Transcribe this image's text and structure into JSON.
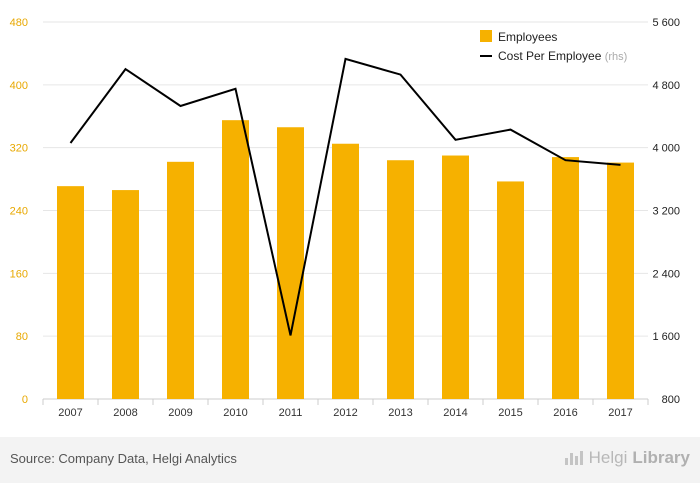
{
  "chart_data": {
    "type": "bar",
    "categories": [
      "2007",
      "2008",
      "2009",
      "2010",
      "2011",
      "2012",
      "2013",
      "2014",
      "2015",
      "2016",
      "2017"
    ],
    "series": [
      {
        "name": "Employees",
        "kind": "bar",
        "axis": "left",
        "color": "#f6b100",
        "values": [
          271,
          266,
          302,
          355,
          346,
          325,
          304,
          310,
          277,
          308,
          301
        ]
      },
      {
        "name": "Cost Per Employee",
        "kind": "line",
        "axis": "right",
        "color": "#000000",
        "values": [
          4060,
          5000,
          4530,
          4750,
          1610,
          5130,
          4930,
          4100,
          4230,
          3840,
          3780
        ]
      }
    ],
    "ylim_left": [
      0,
      480
    ],
    "yticks_left": [
      0,
      80,
      160,
      240,
      320,
      400,
      480
    ],
    "yticks_left_labels": [
      "0",
      "80",
      "160",
      "240",
      "320",
      "400",
      "480"
    ],
    "ylim_right": [
      800,
      5600
    ],
    "yticks_right": [
      800,
      1600,
      2400,
      3200,
      4000,
      4800,
      5600
    ],
    "yticks_right_labels": [
      "800",
      "1 600",
      "2 400",
      "3 200",
      "4 000",
      "4 800",
      "5 600"
    ],
    "legend": [
      {
        "label": "Employees",
        "suffix": "",
        "marker": "square"
      },
      {
        "label": "Cost Per Employee",
        "suffix": "(rhs)",
        "marker": "line"
      }
    ],
    "legend_position": "top-right",
    "grid": true,
    "left_tick_color": "#e8a800"
  },
  "footer": {
    "source": "Source: Company Data, Helgi Analytics",
    "brand_name_a": "Helgi",
    "brand_name_b": "Library"
  }
}
